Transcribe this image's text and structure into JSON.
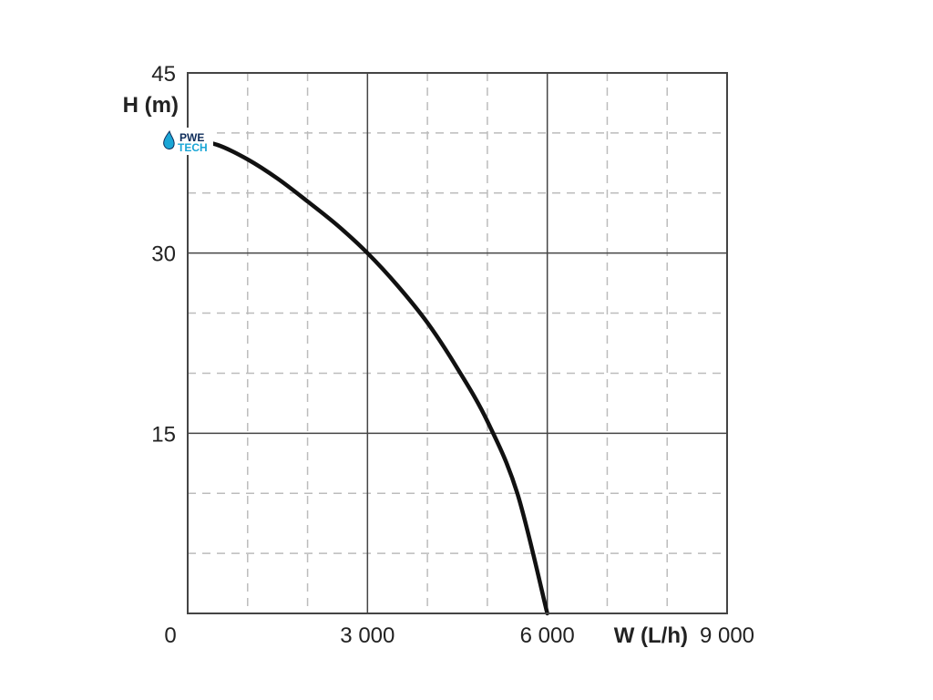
{
  "chart_data": {
    "type": "line",
    "title": "",
    "xlabel": "W (L/h)",
    "ylabel": "H (m)",
    "xlim": [
      0,
      9000
    ],
    "ylim": [
      0,
      45
    ],
    "x_ticks": [
      0,
      3000,
      6000,
      9000
    ],
    "x_tick_labels": [
      "0",
      "3 000",
      "6 000",
      "9 000"
    ],
    "y_ticks": [
      15,
      30,
      45
    ],
    "y_tick_labels": [
      "15",
      "30",
      "45"
    ],
    "grid": "major solid, minor dashed",
    "series": [
      {
        "name": "",
        "color": "#111111",
        "x": [
          0,
          500,
          1000,
          1500,
          2000,
          2500,
          3000,
          3500,
          4000,
          4500,
          5000,
          5500,
          6000
        ],
        "y": [
          39.5,
          39.0,
          37.8,
          36.2,
          34.3,
          32.3,
          30.0,
          27.3,
          24.2,
          20.4,
          16.0,
          10.0,
          0.0
        ]
      }
    ]
  },
  "logo": {
    "text_top": "PWE",
    "text_bottom": "TECH",
    "color_dark": "#0d2c5a",
    "color_light": "#1aa6d6"
  }
}
